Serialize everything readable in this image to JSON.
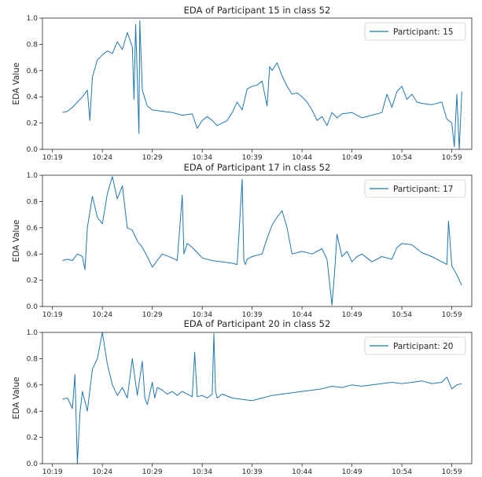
{
  "chart_data": [
    {
      "type": "line",
      "title": "EDA of Participant 15 in class 52",
      "xlabel": "",
      "ylabel": "EDA Value",
      "xlim": [
        "10:18",
        "11:01"
      ],
      "ylim": [
        0.0,
        1.0
      ],
      "x_ticks": [
        "10:19",
        "10:24",
        "10:29",
        "10:34",
        "10:39",
        "10:44",
        "10:49",
        "10:54",
        "10:59"
      ],
      "y_ticks": [
        "0.0",
        "0.2",
        "0.4",
        "0.6",
        "0.8",
        "1.0"
      ],
      "grid": false,
      "legend_position": "top-right",
      "color": "#1f77b4",
      "series": [
        {
          "name": "Participant: 15",
          "x": [
            "10:20:00",
            "10:20:30",
            "10:21:00",
            "10:21:30",
            "10:22:00",
            "10:22:30",
            "10:22:45",
            "10:23:00",
            "10:23:30",
            "10:24:00",
            "10:24:30",
            "10:25:00",
            "10:25:30",
            "10:26:00",
            "10:26:30",
            "10:27:00",
            "10:27:10",
            "10:27:20",
            "10:27:30",
            "10:27:40",
            "10:27:45",
            "10:28:00",
            "10:28:30",
            "10:29:00",
            "10:30:00",
            "10:31:00",
            "10:32:00",
            "10:33:00",
            "10:33:30",
            "10:34:00",
            "10:34:30",
            "10:35:00",
            "10:35:30",
            "10:36:00",
            "10:36:30",
            "10:37:00",
            "10:37:30",
            "10:38:00",
            "10:38:30",
            "10:39:00",
            "10:39:30",
            "10:40:00",
            "10:40:30",
            "10:40:45",
            "10:41:00",
            "10:41:30",
            "10:42:00",
            "10:42:30",
            "10:43:00",
            "10:43:30",
            "10:44:00",
            "10:44:30",
            "10:45:00",
            "10:45:30",
            "10:46:00",
            "10:46:30",
            "10:47:00",
            "10:47:30",
            "10:48:00",
            "10:49:00",
            "10:50:00",
            "10:51:00",
            "10:52:00",
            "10:52:30",
            "10:53:00",
            "10:53:30",
            "10:54:00",
            "10:54:30",
            "10:55:00",
            "10:55:30",
            "10:56:00",
            "10:57:00",
            "10:58:00",
            "10:58:30",
            "10:59:00",
            "10:59:15",
            "10:59:30",
            "10:59:45",
            "11:00:00"
          ],
          "values": [
            0.28,
            0.29,
            0.32,
            0.36,
            0.4,
            0.45,
            0.22,
            0.55,
            0.68,
            0.72,
            0.75,
            0.73,
            0.82,
            0.76,
            0.89,
            0.78,
            0.38,
            0.95,
            0.55,
            0.12,
            0.98,
            0.45,
            0.33,
            0.3,
            0.29,
            0.28,
            0.26,
            0.27,
            0.16,
            0.22,
            0.25,
            0.22,
            0.18,
            0.2,
            0.22,
            0.28,
            0.36,
            0.3,
            0.46,
            0.48,
            0.49,
            0.52,
            0.33,
            0.63,
            0.6,
            0.66,
            0.56,
            0.48,
            0.42,
            0.43,
            0.4,
            0.36,
            0.3,
            0.22,
            0.25,
            0.18,
            0.28,
            0.24,
            0.27,
            0.28,
            0.24,
            0.26,
            0.28,
            0.42,
            0.32,
            0.44,
            0.48,
            0.38,
            0.42,
            0.36,
            0.35,
            0.34,
            0.36,
            0.23,
            0.2,
            0.02,
            0.42,
            0.0,
            0.44
          ]
        }
      ]
    },
    {
      "type": "line",
      "title": "EDA of Participant 17 in class 52",
      "xlabel": "",
      "ylabel": "EDA Value",
      "xlim": [
        "10:18",
        "11:01"
      ],
      "ylim": [
        0.0,
        1.0
      ],
      "x_ticks": [
        "10:19",
        "10:24",
        "10:29",
        "10:34",
        "10:39",
        "10:44",
        "10:49",
        "10:54",
        "10:59"
      ],
      "y_ticks": [
        "0.0",
        "0.2",
        "0.4",
        "0.6",
        "0.8",
        "1.0"
      ],
      "grid": false,
      "legend_position": "top-right",
      "color": "#1f77b4",
      "series": [
        {
          "name": "Participant: 17",
          "x": [
            "10:20:00",
            "10:20:30",
            "10:21:00",
            "10:21:30",
            "10:22:00",
            "10:22:15",
            "10:22:30",
            "10:23:00",
            "10:23:30",
            "10:24:00",
            "10:24:30",
            "10:25:00",
            "10:25:30",
            "10:26:00",
            "10:26:30",
            "10:27:00",
            "10:27:30",
            "10:28:00",
            "10:28:30",
            "10:29:00",
            "10:29:30",
            "10:30:00",
            "10:31:00",
            "10:31:30",
            "10:32:00",
            "10:32:10",
            "10:32:30",
            "10:33:00",
            "10:34:00",
            "10:35:00",
            "10:36:00",
            "10:37:00",
            "10:37:30",
            "10:38:00",
            "10:38:10",
            "10:38:20",
            "10:38:30",
            "10:39:00",
            "10:40:00",
            "10:40:30",
            "10:41:00",
            "10:41:30",
            "10:42:00",
            "10:42:30",
            "10:43:00",
            "10:44:00",
            "10:45:00",
            "10:46:00",
            "10:46:30",
            "10:47:00",
            "10:47:15",
            "10:47:30",
            "10:48:00",
            "10:48:30",
            "10:49:00",
            "10:49:30",
            "10:50:00",
            "10:51:00",
            "10:52:00",
            "10:53:00",
            "10:53:30",
            "10:54:00",
            "10:55:00",
            "10:56:00",
            "10:57:00",
            "10:58:00",
            "10:58:30",
            "10:58:40",
            "10:59:00",
            "10:59:30",
            "11:00:00"
          ],
          "values": [
            0.35,
            0.36,
            0.35,
            0.4,
            0.38,
            0.28,
            0.6,
            0.84,
            0.68,
            0.63,
            0.86,
            0.99,
            0.82,
            0.92,
            0.6,
            0.58,
            0.5,
            0.45,
            0.38,
            0.3,
            0.35,
            0.4,
            0.37,
            0.35,
            0.85,
            0.4,
            0.48,
            0.45,
            0.37,
            0.35,
            0.34,
            0.33,
            0.32,
            0.97,
            0.35,
            0.32,
            0.36,
            0.38,
            0.4,
            0.52,
            0.62,
            0.68,
            0.73,
            0.6,
            0.4,
            0.42,
            0.4,
            0.44,
            0.36,
            0.01,
            0.25,
            0.55,
            0.38,
            0.42,
            0.34,
            0.38,
            0.4,
            0.34,
            0.38,
            0.36,
            0.45,
            0.48,
            0.47,
            0.41,
            0.38,
            0.34,
            0.32,
            0.65,
            0.31,
            0.24,
            0.16
          ]
        }
      ]
    },
    {
      "type": "line",
      "title": "EDA of Participant 20 in class 52",
      "xlabel": "",
      "ylabel": "EDA Value",
      "xlim": [
        "10:18",
        "11:01"
      ],
      "ylim": [
        0.0,
        1.0
      ],
      "x_ticks": [
        "10:19",
        "10:24",
        "10:29",
        "10:34",
        "10:39",
        "10:44",
        "10:49",
        "10:54",
        "10:59"
      ],
      "y_ticks": [
        "0.0",
        "0.2",
        "0.4",
        "0.6",
        "0.8",
        "1.0"
      ],
      "grid": false,
      "legend_position": "top-right",
      "color": "#1f77b4",
      "series": [
        {
          "name": "Participant: 20",
          "x": [
            "10:20:00",
            "10:20:30",
            "10:21:00",
            "10:21:15",
            "10:21:30",
            "10:21:45",
            "10:22:00",
            "10:22:30",
            "10:23:00",
            "10:23:30",
            "10:24:00",
            "10:24:30",
            "10:25:00",
            "10:25:30",
            "10:26:00",
            "10:26:30",
            "10:27:00",
            "10:27:30",
            "10:28:00",
            "10:28:15",
            "10:28:30",
            "10:29:00",
            "10:29:15",
            "10:29:30",
            "10:30:00",
            "10:30:30",
            "10:31:00",
            "10:31:30",
            "10:32:00",
            "10:33:00",
            "10:33:15",
            "10:33:30",
            "10:34:00",
            "10:34:30",
            "10:35:00",
            "10:35:10",
            "10:35:20",
            "10:35:30",
            "10:36:00",
            "10:37:00",
            "10:38:00",
            "10:39:00",
            "10:40:00",
            "10:41:00",
            "10:42:00",
            "10:43:00",
            "10:44:00",
            "10:45:00",
            "10:46:00",
            "10:47:00",
            "10:48:00",
            "10:49:00",
            "10:50:00",
            "10:51:00",
            "10:52:00",
            "10:53:00",
            "10:54:00",
            "10:55:00",
            "10:56:00",
            "10:57:00",
            "10:58:00",
            "10:58:30",
            "10:59:00",
            "10:59:30",
            "11:00:00"
          ],
          "values": [
            0.49,
            0.5,
            0.42,
            0.68,
            0.0,
            0.38,
            0.55,
            0.4,
            0.72,
            0.8,
            1.0,
            0.76,
            0.6,
            0.52,
            0.58,
            0.5,
            0.8,
            0.52,
            0.78,
            0.5,
            0.45,
            0.62,
            0.5,
            0.58,
            0.56,
            0.53,
            0.55,
            0.52,
            0.55,
            0.51,
            0.85,
            0.51,
            0.52,
            0.5,
            0.53,
            0.99,
            0.55,
            0.5,
            0.53,
            0.5,
            0.49,
            0.48,
            0.5,
            0.52,
            0.53,
            0.54,
            0.55,
            0.56,
            0.57,
            0.59,
            0.58,
            0.6,
            0.59,
            0.6,
            0.61,
            0.62,
            0.61,
            0.62,
            0.63,
            0.61,
            0.62,
            0.66,
            0.57,
            0.6,
            0.61
          ]
        }
      ]
    }
  ]
}
